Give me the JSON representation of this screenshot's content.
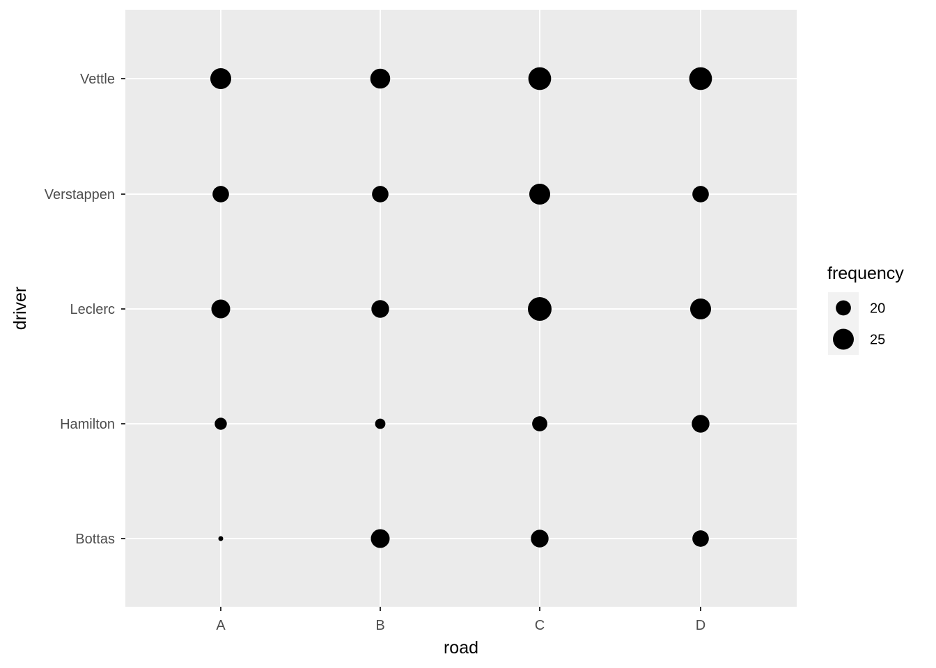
{
  "chart_data": {
    "type": "scatter",
    "xlabel": "road",
    "ylabel": "driver",
    "x_categories": [
      "A",
      "B",
      "C",
      "D"
    ],
    "y_categories": [
      "Bottas",
      "Hamilton",
      "Leclerc",
      "Verstappen",
      "Vettle"
    ],
    "size_variable": "frequency",
    "size_range": [
      15,
      28
    ],
    "points": [
      {
        "road": "A",
        "driver": "Vettle",
        "frequency": 25
      },
      {
        "road": "B",
        "driver": "Vettle",
        "frequency": 24
      },
      {
        "road": "C",
        "driver": "Vettle",
        "frequency": 27
      },
      {
        "road": "D",
        "driver": "Vettle",
        "frequency": 27
      },
      {
        "road": "A",
        "driver": "Verstappen",
        "frequency": 21
      },
      {
        "road": "B",
        "driver": "Verstappen",
        "frequency": 21
      },
      {
        "road": "C",
        "driver": "Verstappen",
        "frequency": 25
      },
      {
        "road": "D",
        "driver": "Verstappen",
        "frequency": 21
      },
      {
        "road": "A",
        "driver": "Leclerc",
        "frequency": 23
      },
      {
        "road": "B",
        "driver": "Leclerc",
        "frequency": 22
      },
      {
        "road": "C",
        "driver": "Leclerc",
        "frequency": 28
      },
      {
        "road": "D",
        "driver": "Leclerc",
        "frequency": 25
      },
      {
        "road": "A",
        "driver": "Hamilton",
        "frequency": 18
      },
      {
        "road": "B",
        "driver": "Hamilton",
        "frequency": 17
      },
      {
        "road": "C",
        "driver": "Hamilton",
        "frequency": 20
      },
      {
        "road": "D",
        "driver": "Hamilton",
        "frequency": 22
      },
      {
        "road": "A",
        "driver": "Bottas",
        "frequency": 15
      },
      {
        "road": "B",
        "driver": "Bottas",
        "frequency": 23
      },
      {
        "road": "C",
        "driver": "Bottas",
        "frequency": 22
      },
      {
        "road": "D",
        "driver": "Bottas",
        "frequency": 21
      }
    ],
    "legend": {
      "title": "frequency",
      "entries": [
        {
          "label": "20",
          "value": 20
        },
        {
          "label": "25",
          "value": 25
        }
      ],
      "position": "right"
    },
    "grid": true,
    "colors": {
      "panel_background": "#ebebeb",
      "grid": "#ffffff",
      "point": "#000000"
    }
  }
}
